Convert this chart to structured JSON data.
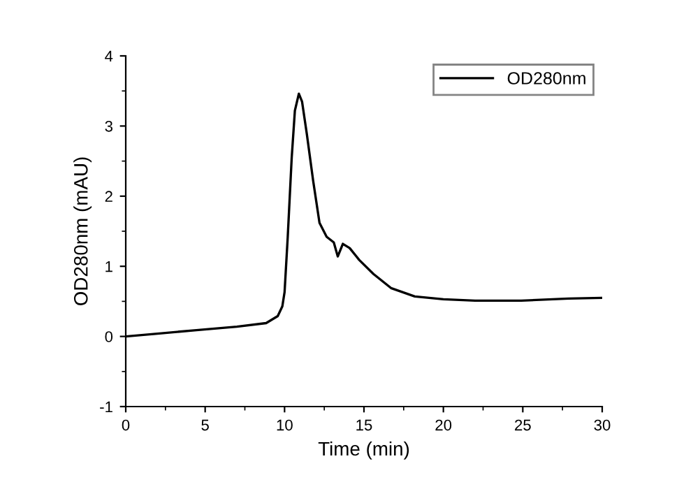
{
  "chart_data": {
    "type": "line",
    "xlabel": "Time (min)",
    "ylabel": "OD280nm (mAU)",
    "series": [
      {
        "name": "OD280nm",
        "color": "#000000",
        "x": [
          0,
          2,
          4.45,
          7,
          8.84,
          9.57,
          9.86,
          10.0,
          10.2,
          10.45,
          10.65,
          10.9,
          11.1,
          11.4,
          11.8,
          12.2,
          12.65,
          13.1,
          13.35,
          13.67,
          14.1,
          14.7,
          15.6,
          16.7,
          18.2,
          20.0,
          22.0,
          24.9,
          27.9,
          30
        ],
        "values": [
          0,
          0.04,
          0.09,
          0.14,
          0.19,
          0.29,
          0.43,
          0.63,
          1.42,
          2.55,
          3.22,
          3.46,
          3.35,
          2.89,
          2.22,
          1.62,
          1.42,
          1.34,
          1.14,
          1.32,
          1.26,
          1.09,
          0.89,
          0.69,
          0.57,
          0.53,
          0.51,
          0.51,
          0.54,
          0.55
        ]
      }
    ],
    "xlim": [
      0,
      30
    ],
    "xticks": [
      0,
      5,
      10,
      15,
      20,
      25,
      30
    ],
    "ylim": [
      -1,
      4
    ],
    "yticks": [
      -1,
      0,
      1,
      2,
      3,
      4
    ],
    "grid": false,
    "legend": "top right",
    "marker": "none",
    "line_style": "solid"
  }
}
